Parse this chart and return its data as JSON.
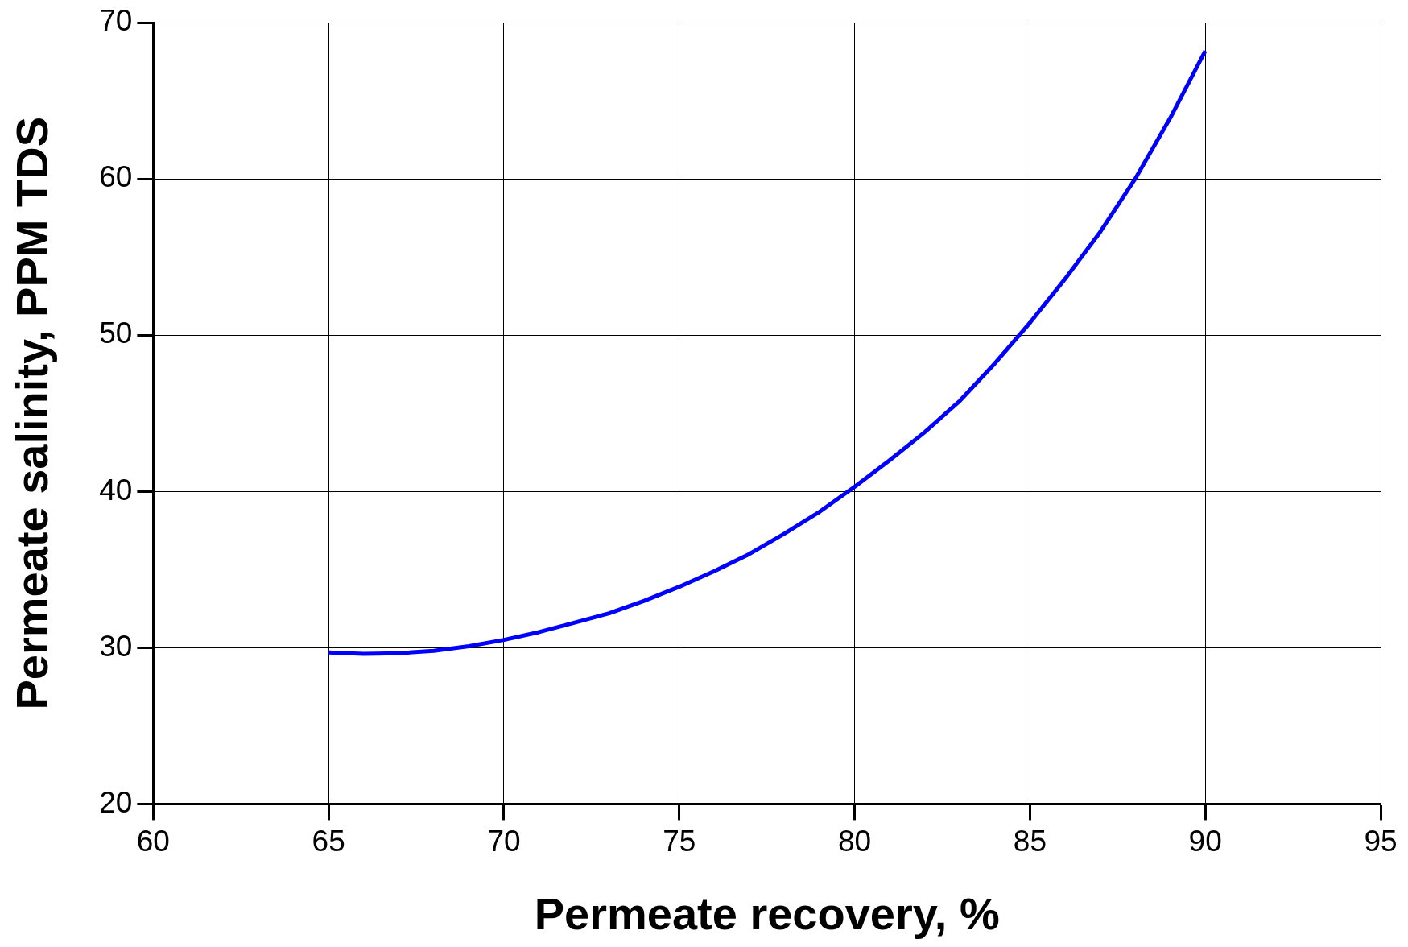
{
  "chart_data": {
    "type": "line",
    "xlabel": "Permeate recovery, %",
    "ylabel": "Permeate salinity, PPM TDS",
    "x": [
      65,
      66,
      67,
      68,
      69,
      70,
      71,
      72,
      73,
      74,
      75,
      76,
      77,
      78,
      79,
      80,
      81,
      82,
      83,
      84,
      85,
      86,
      87,
      88,
      89,
      90
    ],
    "series": [
      {
        "color": "#0000ff",
        "values": [
          29.7,
          29.6,
          29.65,
          29.8,
          30.1,
          30.5,
          31.0,
          31.6,
          32.2,
          33.0,
          33.9,
          34.9,
          36.0,
          37.3,
          38.7,
          40.3,
          42.0,
          43.8,
          45.8,
          48.2,
          50.8,
          53.6,
          56.6,
          60.0,
          63.9,
          68.2
        ]
      }
    ],
    "xlim": [
      60,
      95
    ],
    "xticks": [
      60,
      65,
      70,
      75,
      80,
      85,
      90,
      95
    ],
    "ylim": [
      20,
      70
    ],
    "yticks": [
      20,
      30,
      40,
      50,
      60,
      70
    ],
    "grid": true,
    "legend": false,
    "marker": "none",
    "line_style": "solid"
  }
}
